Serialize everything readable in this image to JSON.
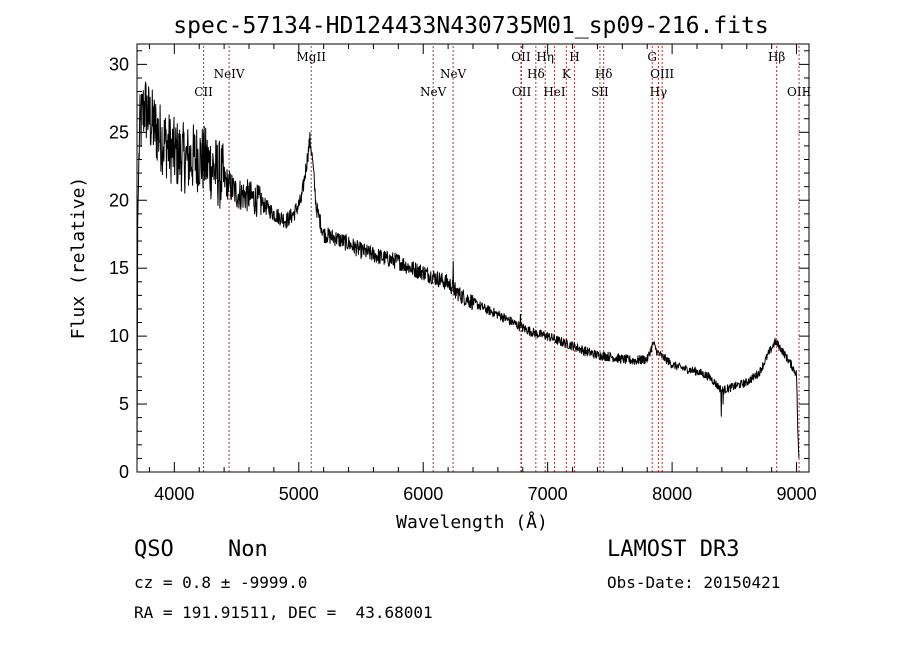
{
  "chart_data": {
    "type": "line",
    "title": "spec-57134-HD124433N430735M01_sp09-216.fits",
    "xlabel": "Wavelength (Å)",
    "ylabel": "Flux (relative)",
    "xlim": [
      3700,
      9100
    ],
    "ylim": [
      0,
      31.5
    ],
    "x_ticks": [
      4000,
      5000,
      6000,
      7000,
      8000,
      9000
    ],
    "y_ticks": [
      0,
      5,
      10,
      15,
      20,
      25,
      30
    ],
    "spectrum_anchors": [
      [
        3700,
        0.5
      ],
      [
        3705,
        18
      ],
      [
        3720,
        25
      ],
      [
        3760,
        27
      ],
      [
        3800,
        26
      ],
      [
        3900,
        24.5
      ],
      [
        4000,
        23.5
      ],
      [
        4100,
        23
      ],
      [
        4200,
        23.2
      ],
      [
        4300,
        22.5
      ],
      [
        4400,
        21.5
      ],
      [
        4500,
        20.5
      ],
      [
        4600,
        20.3
      ],
      [
        4700,
        19.8
      ],
      [
        4800,
        19.0
      ],
      [
        4900,
        18.5
      ],
      [
        4960,
        19.0
      ],
      [
        5020,
        20.0
      ],
      [
        5060,
        22.5
      ],
      [
        5090,
        24.5
      ],
      [
        5110,
        23.0
      ],
      [
        5140,
        19.5
      ],
      [
        5200,
        17.5
      ],
      [
        5300,
        17.2
      ],
      [
        5400,
        16.8
      ],
      [
        5500,
        16.3
      ],
      [
        5600,
        16.0
      ],
      [
        5700,
        15.7
      ],
      [
        5800,
        15.5
      ],
      [
        5900,
        15.0
      ],
      [
        6000,
        14.7
      ],
      [
        6100,
        14.3
      ],
      [
        6200,
        13.9
      ],
      [
        6300,
        13.0
      ],
      [
        6400,
        12.5
      ],
      [
        6500,
        12.0
      ],
      [
        6600,
        11.6
      ],
      [
        6700,
        11.1
      ],
      [
        6800,
        10.6
      ],
      [
        6900,
        10.2
      ],
      [
        7000,
        10.0
      ],
      [
        7100,
        9.6
      ],
      [
        7200,
        9.3
      ],
      [
        7300,
        8.9
      ],
      [
        7400,
        8.6
      ],
      [
        7500,
        8.5
      ],
      [
        7600,
        8.3
      ],
      [
        7700,
        8.2
      ],
      [
        7800,
        8.3
      ],
      [
        7850,
        9.5
      ],
      [
        7880,
        8.8
      ],
      [
        7950,
        8.3
      ],
      [
        8000,
        7.9
      ],
      [
        8100,
        7.6
      ],
      [
        8200,
        7.4
      ],
      [
        8300,
        7.0
      ],
      [
        8400,
        6.0
      ],
      [
        8500,
        6.3
      ],
      [
        8600,
        6.6
      ],
      [
        8700,
        7.3
      ],
      [
        8780,
        8.8
      ],
      [
        8830,
        9.6
      ],
      [
        8880,
        9.0
      ],
      [
        8950,
        8.0
      ],
      [
        9000,
        7.2
      ],
      [
        9010,
        3.0
      ],
      [
        9020,
        0.8
      ]
    ],
    "spectrum_spikes": [
      [
        6240,
        15.5
      ],
      [
        6260,
        12.8
      ],
      [
        6780,
        11.6
      ],
      [
        8395,
        4.1
      ],
      [
        8410,
        5.0
      ]
    ],
    "line_markers": [
      {
        "label": "CII",
        "x": 4235,
        "row": 2
      },
      {
        "label": "NeIV",
        "x": 4440,
        "row": 1
      },
      {
        "label": "MgII",
        "x": 5100,
        "row": 0
      },
      {
        "label": "NeV",
        "x": 6080,
        "row": 2
      },
      {
        "label": "NeV",
        "x": 6240,
        "row": 1
      },
      {
        "label": "OII",
        "x": 6785,
        "row": 0
      },
      {
        "label": "OII",
        "x": 6790,
        "row": 2
      },
      {
        "label": "Hδ",
        "x": 6905,
        "row": 1
      },
      {
        "label": "Hη",
        "x": 6980,
        "row": 0
      },
      {
        "label": "HeI",
        "x": 7055,
        "row": 2
      },
      {
        "label": "K",
        "x": 7150,
        "row": 1
      },
      {
        "label": "H",
        "x": 7215,
        "row": 0
      },
      {
        "label": "SII",
        "x": 7420,
        "row": 2
      },
      {
        "label": "Hδ",
        "x": 7450,
        "row": 1
      },
      {
        "label": "G",
        "x": 7840,
        "row": 0
      },
      {
        "label": "Hγ",
        "x": 7890,
        "row": 2
      },
      {
        "label": "OIII",
        "x": 7920,
        "row": 1
      },
      {
        "label": "Hβ",
        "x": 8840,
        "row": 0
      },
      {
        "label": "OIII",
        "x": 9020,
        "row": 2
      }
    ],
    "marker_color": "#c03030",
    "line_color": "#000000"
  },
  "info": {
    "class": "QSO",
    "subclass": "Non",
    "survey": "LAMOST DR3",
    "cz": "cz = 0.8 ± -9999.0",
    "obs_date": "Obs-Date: 20150421",
    "coords": "RA = 191.91511, DEC =  43.68001"
  }
}
